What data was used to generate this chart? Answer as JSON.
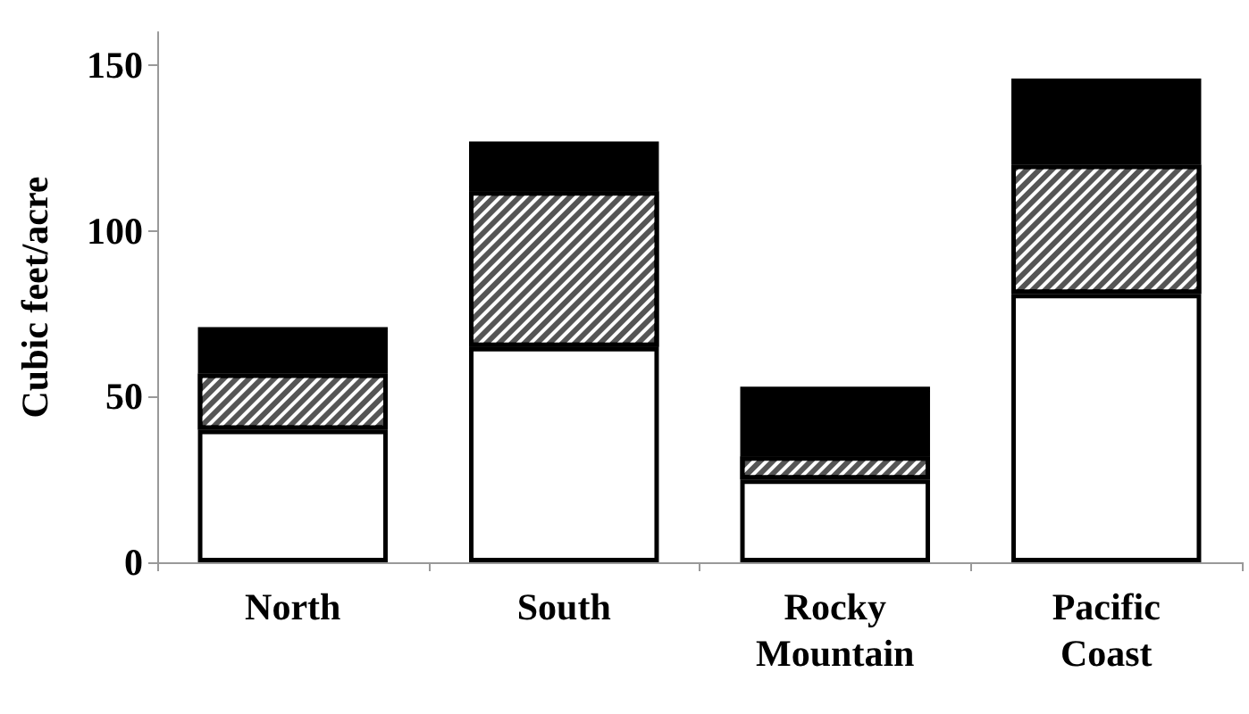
{
  "chart_data": {
    "type": "bar",
    "ylabel": "Cubic feet/acre",
    "categories": [
      "North",
      "South",
      "Rocky Mountain",
      "Pacific Coast"
    ],
    "stacked": true,
    "series": [
      {
        "color": "#ffffff",
        "values": [
          40,
          65,
          25,
          81
        ]
      },
      {
        "color": "#555555",
        "values": [
          17,
          47,
          7,
          39
        ]
      },
      {
        "color": "#000000",
        "values": [
          14,
          15,
          21,
          26
        ]
      }
    ],
    "ylim": [
      0,
      160
    ],
    "yticks": [
      0,
      50,
      100,
      150
    ]
  }
}
